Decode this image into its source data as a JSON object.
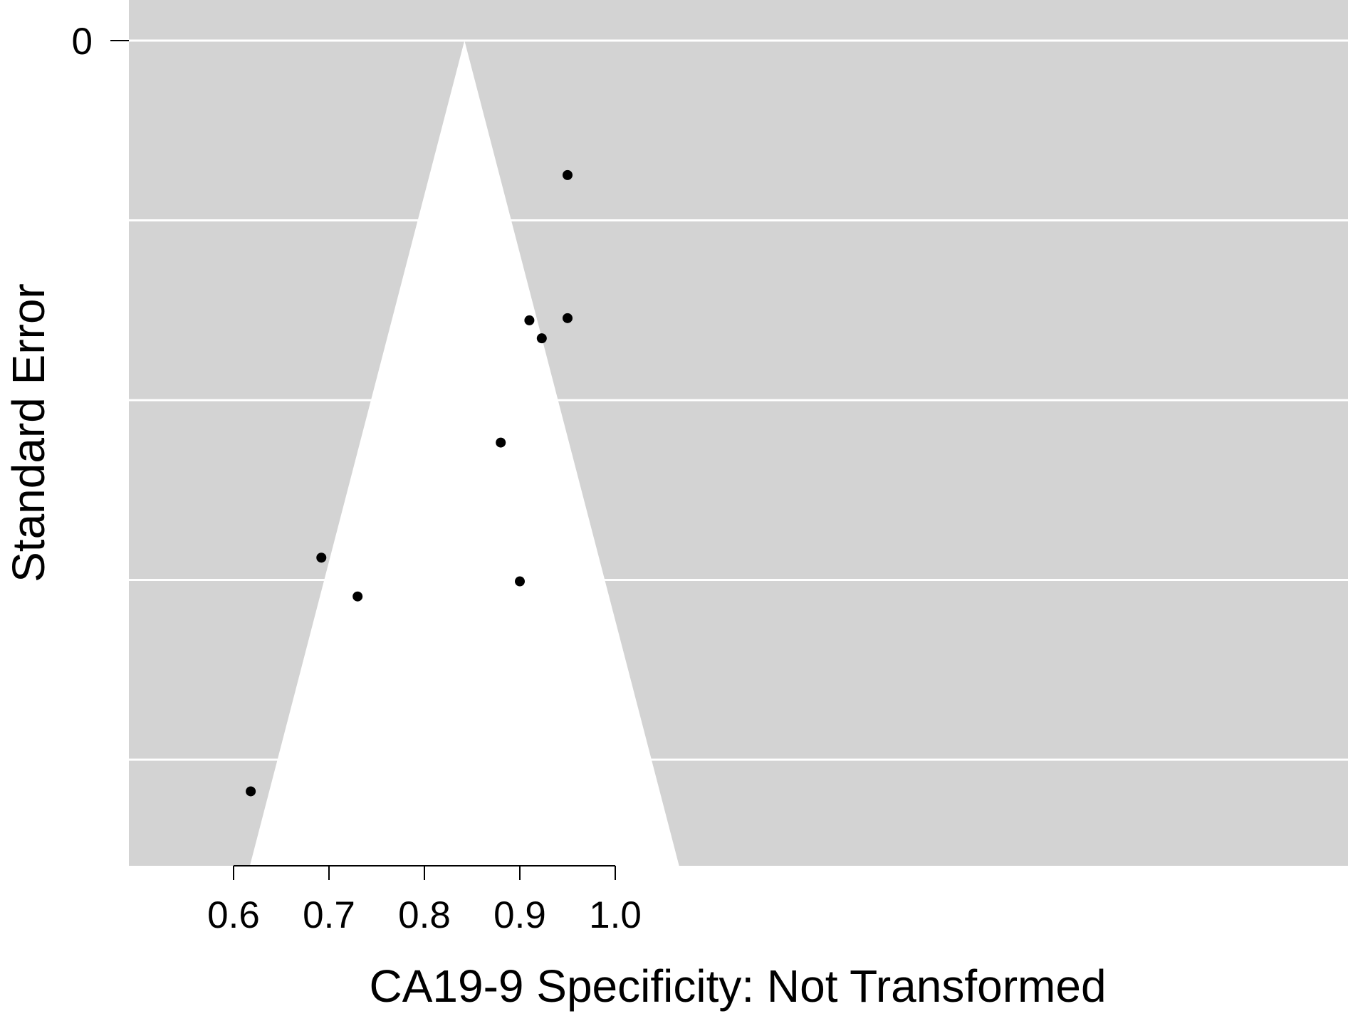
{
  "chart_data": {
    "type": "scatter",
    "title": "",
    "xlabel": "CA19-9 Specificity: Not Transformed",
    "ylabel": "Standard Error",
    "xlim": [
      0.556,
      1.066
    ],
    "ylim": [
      0,
      0.115
    ],
    "y_reversed": true,
    "x_ticks": [
      "0.6",
      "0.7",
      "0.8",
      "0.9",
      "1.0"
    ],
    "y_ticks": [
      "0"
    ],
    "y_gridlines": [
      0,
      0.025,
      0.05,
      0.075,
      0.1
    ],
    "grid": true,
    "funnel": {
      "center": 0.842,
      "z": 1.96
    },
    "colors": {
      "panel": "#d3d3d3",
      "funnel": "#ffffff",
      "points": "#000000",
      "grid": "#ffffff"
    },
    "points": [
      {
        "x": 0.95,
        "y": 0.0187
      },
      {
        "x": 0.91,
        "y": 0.0389
      },
      {
        "x": 0.923,
        "y": 0.0414
      },
      {
        "x": 0.95,
        "y": 0.0386
      },
      {
        "x": 0.88,
        "y": 0.0559
      },
      {
        "x": 0.9,
        "y": 0.0752
      },
      {
        "x": 0.692,
        "y": 0.0719
      },
      {
        "x": 0.73,
        "y": 0.0773
      },
      {
        "x": 0.618,
        "y": 0.1044
      }
    ]
  }
}
